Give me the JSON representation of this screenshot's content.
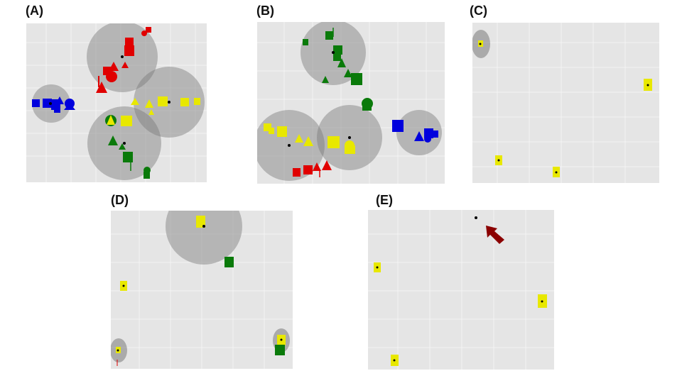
{
  "panels": [
    {
      "id": "A",
      "label": "(A)"
    },
    {
      "id": "B",
      "label": "(B)"
    },
    {
      "id": "C",
      "label": "(C)"
    },
    {
      "id": "D",
      "label": "(D)"
    },
    {
      "id": "E",
      "label": "(E)"
    }
  ],
  "colors": {
    "plot_background": "#e5e5e5",
    "gridline": "#f3f3f3",
    "cluster_circle": "#9a9a9a",
    "red": "#e00000",
    "blue": "#0000dd",
    "yellow": "#e8e800",
    "green": "#0a7a0a",
    "centroid": "#000000",
    "arrow": "#8b0000"
  },
  "legend": {
    "shapes": [
      "square",
      "circle",
      "triangle"
    ],
    "groups": [
      "red",
      "blue",
      "yellow",
      "green"
    ]
  },
  "annotation": {
    "arrow_icon": "arrow-icon"
  }
}
